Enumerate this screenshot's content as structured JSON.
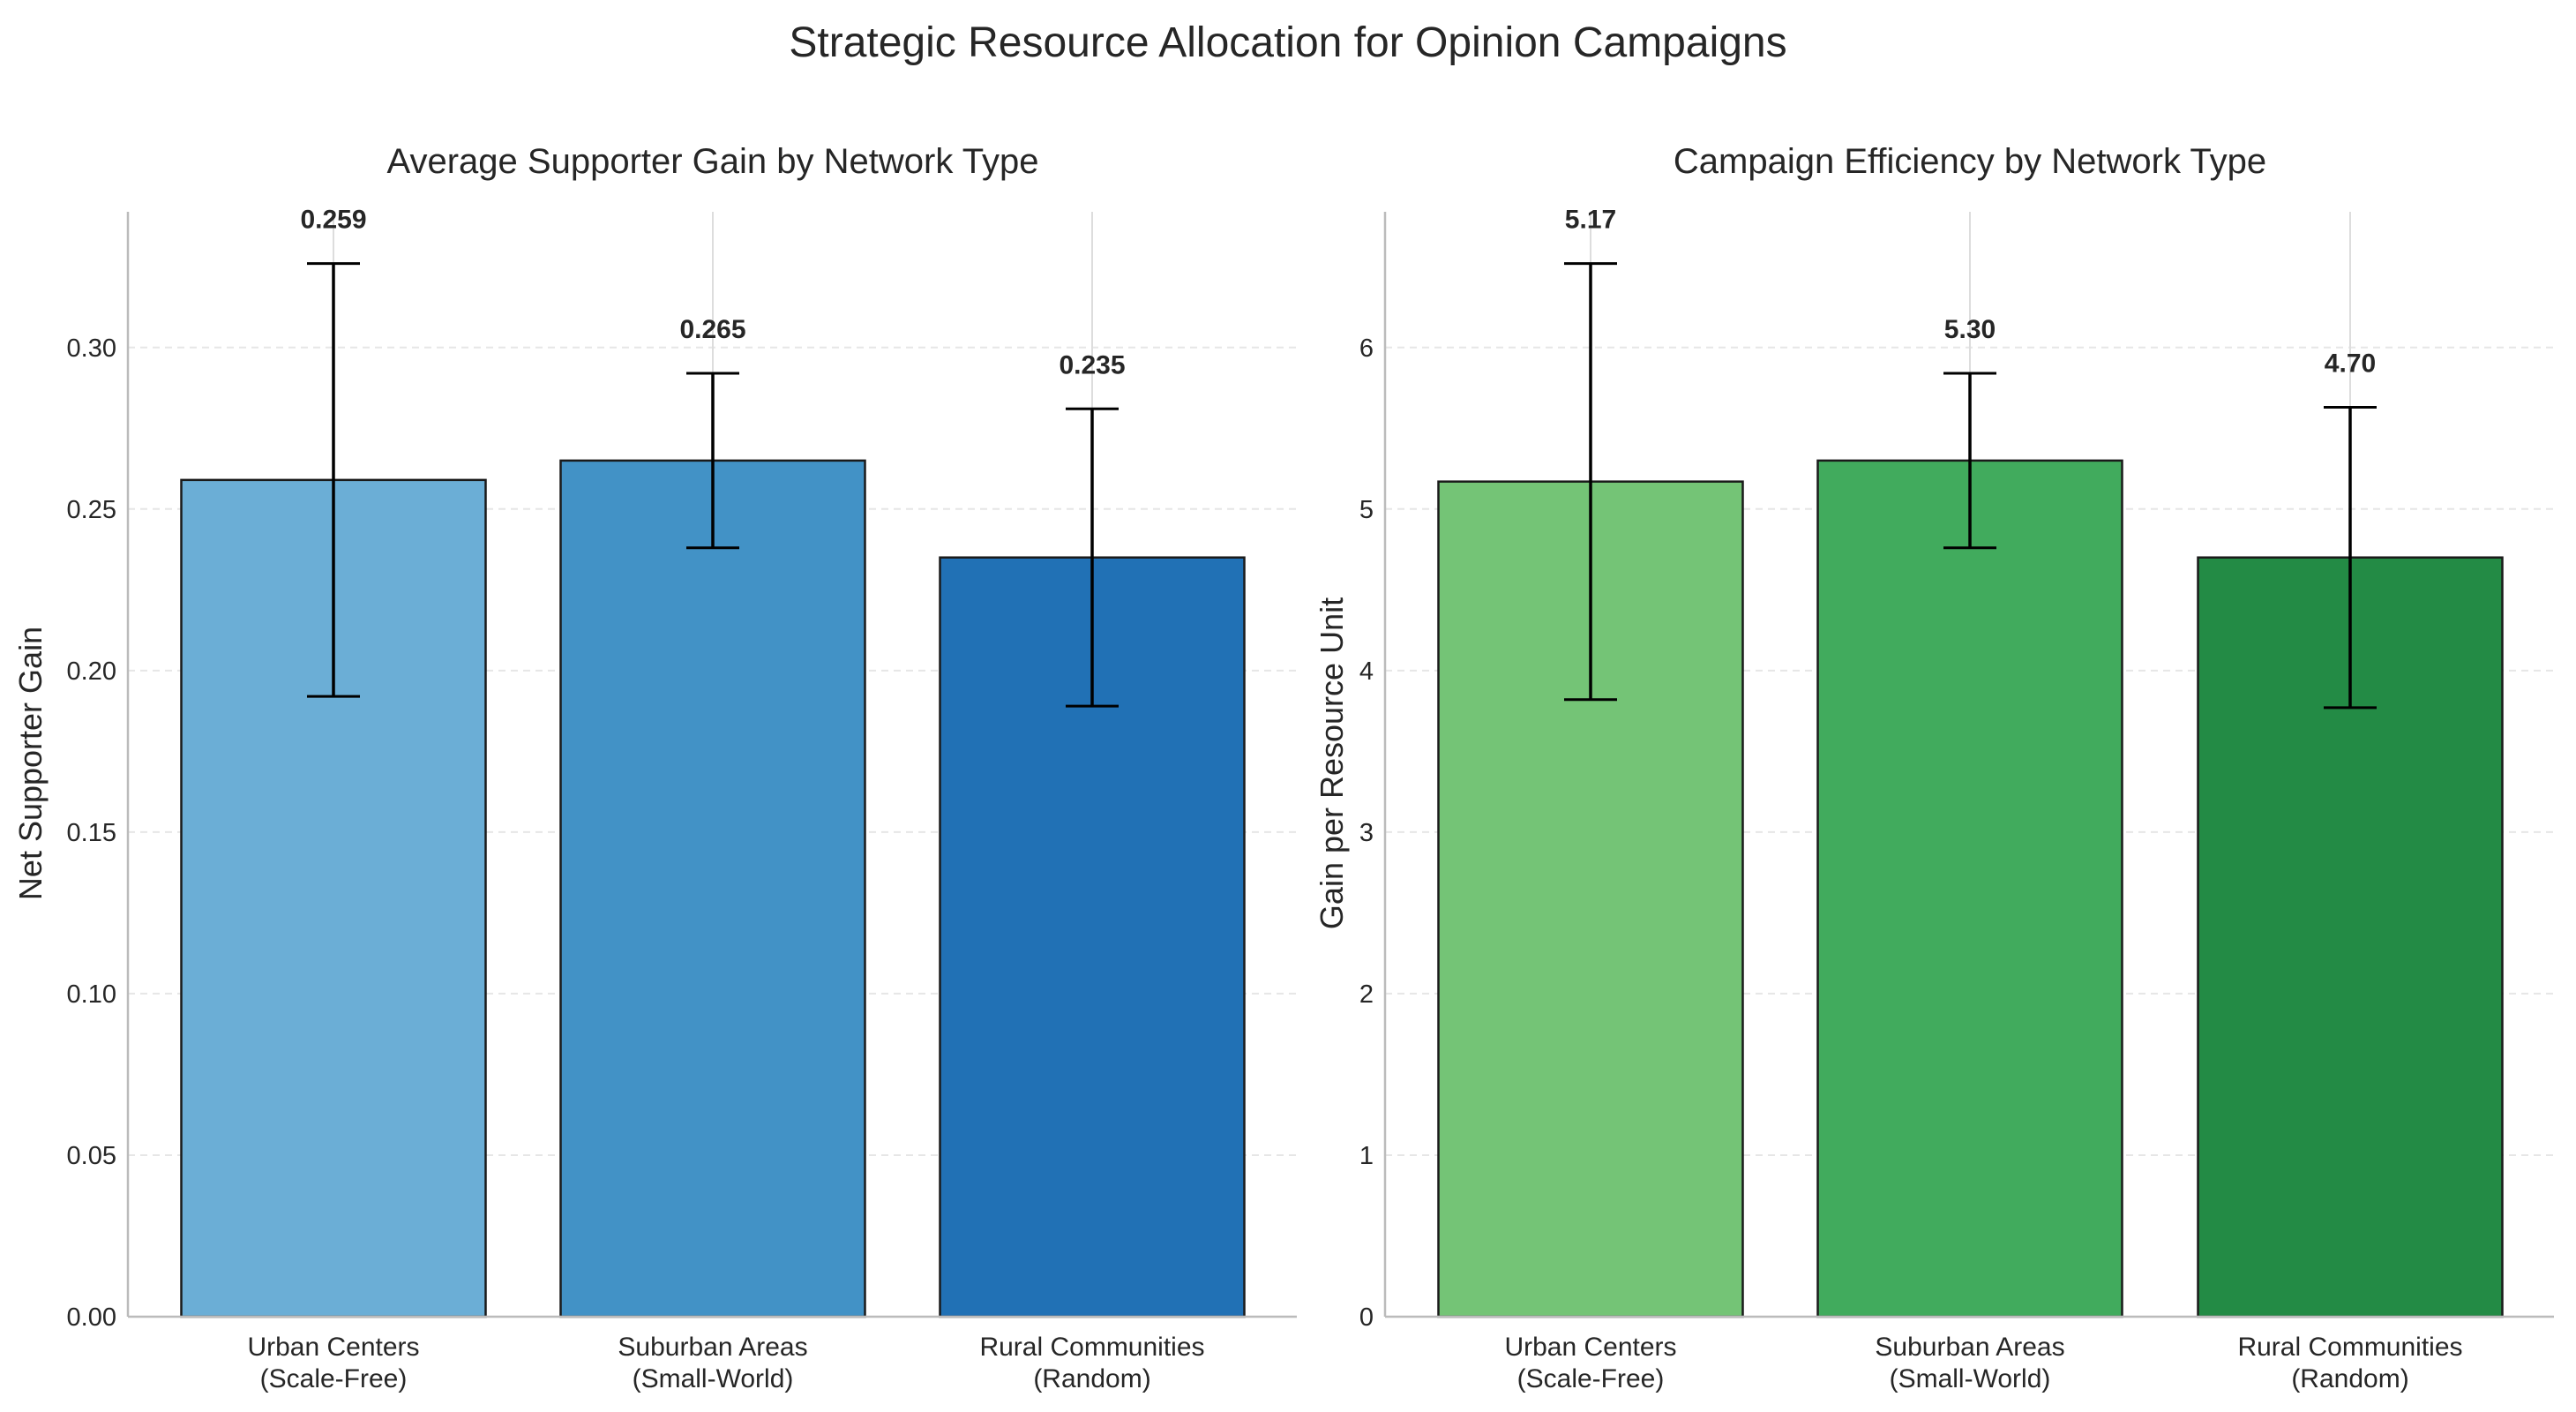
{
  "figure": {
    "title": "Strategic Resource Allocation for Opinion Campaigns"
  },
  "chart_data": [
    {
      "type": "bar",
      "title": "Average Supporter Gain by Network Type",
      "xlabel": "",
      "ylabel": "Net Supporter Gain",
      "categories": [
        "Urban Centers\n(Scale-Free)",
        "Suburban Areas\n(Small-World)",
        "Rural Communities\n(Random)"
      ],
      "values": [
        0.259,
        0.265,
        0.235
      ],
      "errors": [
        0.067,
        0.027,
        0.046
      ],
      "value_labels": [
        "0.259",
        "0.265",
        "0.235"
      ],
      "colors": [
        "#6baed6",
        "#4292c6",
        "#2171b5"
      ],
      "ylim": [
        0,
        0.342
      ],
      "yticks": [
        0,
        0.05,
        0.1,
        0.15,
        0.2,
        0.25,
        0.3
      ],
      "ytick_labels": [
        "0.00",
        "0.05",
        "0.10",
        "0.15",
        "0.20",
        "0.25",
        "0.30"
      ],
      "grid": "y dashed + x at category centers",
      "legend": "none"
    },
    {
      "type": "bar",
      "title": "Campaign Efficiency by Network Type",
      "xlabel": "",
      "ylabel": "Gain per Resource Unit",
      "categories": [
        "Urban Centers\n(Scale-Free)",
        "Suburban Areas\n(Small-World)",
        "Rural Communities\n(Random)"
      ],
      "values": [
        5.17,
        5.3,
        4.7
      ],
      "errors": [
        1.35,
        0.54,
        0.93
      ],
      "value_labels": [
        "5.17",
        "5.30",
        "4.70"
      ],
      "colors": [
        "#74c476",
        "#41ab5d",
        "#238b45"
      ],
      "ylim": [
        0,
        6.84
      ],
      "yticks": [
        0,
        1,
        2,
        3,
        4,
        5,
        6
      ],
      "ytick_labels": [
        "0",
        "1",
        "2",
        "3",
        "4",
        "5",
        "6"
      ],
      "grid": "y dashed + x at category centers",
      "legend": "none"
    }
  ]
}
